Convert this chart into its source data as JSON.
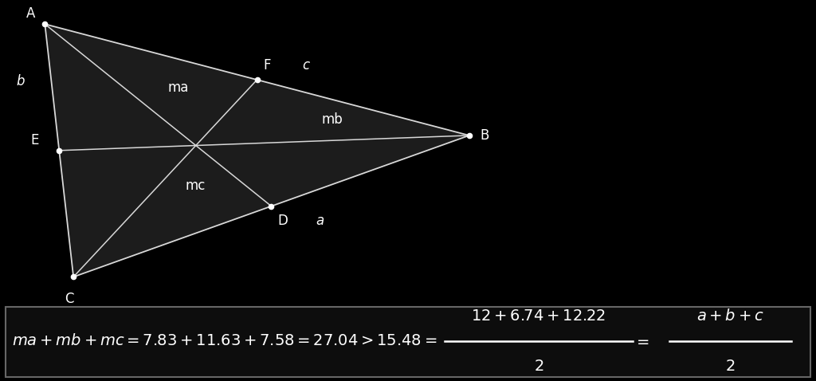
{
  "bg_color": "#000000",
  "line_color": "#d8d8d8",
  "text_color": "#ffffff",
  "dot_color": "#ffffff",
  "A": [
    0.055,
    0.92
  ],
  "B": [
    0.575,
    0.55
  ],
  "C": [
    0.09,
    0.08
  ],
  "fig_width": 10.24,
  "fig_height": 4.78,
  "triangle_facecolor": "#1c1c1c",
  "label_fontsize": 12,
  "formula_fontsize": 14
}
